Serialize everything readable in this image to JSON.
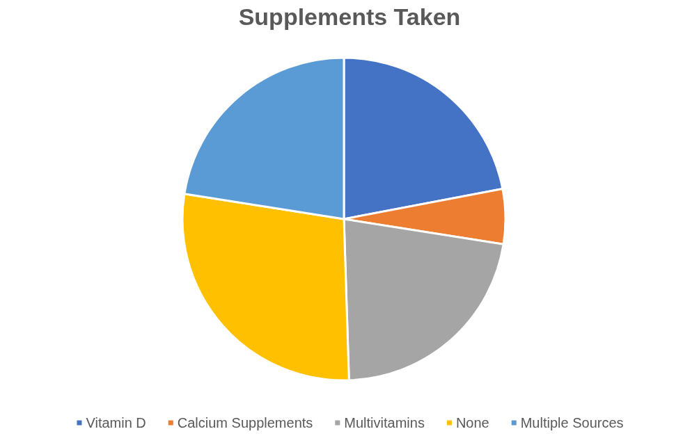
{
  "chart_data": {
    "type": "pie",
    "title": "Supplements Taken",
    "categories": [
      "Vitamin D",
      "Calcium Supplements",
      "Multivitamins",
      "None",
      "Multiple Sources"
    ],
    "values": [
      22,
      5.5,
      22,
      28,
      22.5
    ],
    "colors": [
      "#4472c4",
      "#ed7d31",
      "#a5a5a5",
      "#ffc000",
      "#5b9bd5"
    ],
    "legend": "bottom"
  }
}
